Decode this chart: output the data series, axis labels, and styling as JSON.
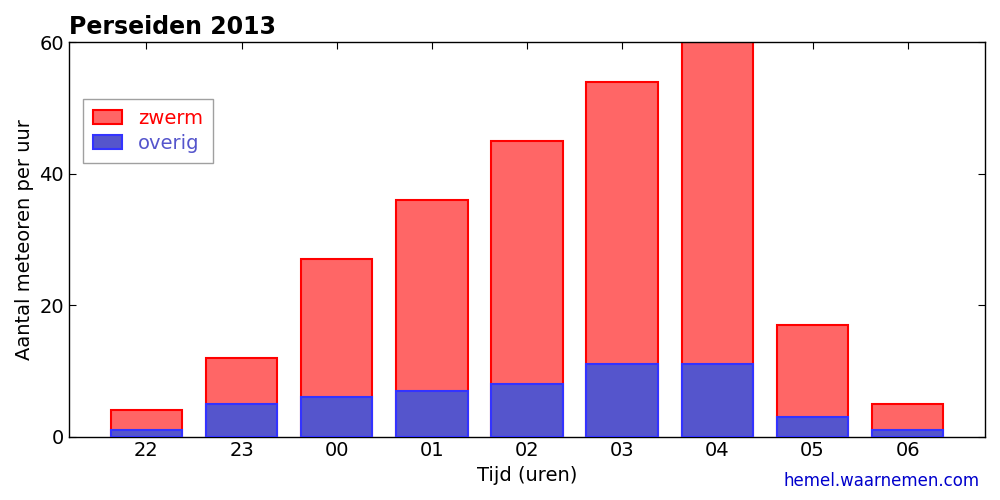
{
  "hours": [
    "22",
    "23",
    "00",
    "01",
    "02",
    "03",
    "04",
    "05",
    "06"
  ],
  "zwerm": [
    4,
    12,
    27,
    36,
    45,
    54,
    60,
    17,
    5
  ],
  "overig": [
    1,
    5,
    6,
    7,
    8,
    11,
    11,
    3,
    1
  ],
  "zwerm_color": "#FF6666",
  "overig_color": "#5555CC",
  "zwerm_edge": "#FF0000",
  "overig_edge": "#3333FF",
  "title": "Perseiden 2013",
  "xlabel": "Tijd (uren)",
  "ylabel": "Aantal meteoren per uur",
  "ylim": [
    0,
    60
  ],
  "yticks": [
    0,
    20,
    40,
    60
  ],
  "legend_zwerm": "zwerm",
  "legend_overig": "overig",
  "watermark": "hemel.waarnemen.com",
  "watermark_color": "#0000CC",
  "background_color": "#FFFFFF",
  "title_fontsize": 17,
  "label_fontsize": 14,
  "tick_fontsize": 14,
  "legend_fontsize": 14,
  "bar_width": 0.75
}
